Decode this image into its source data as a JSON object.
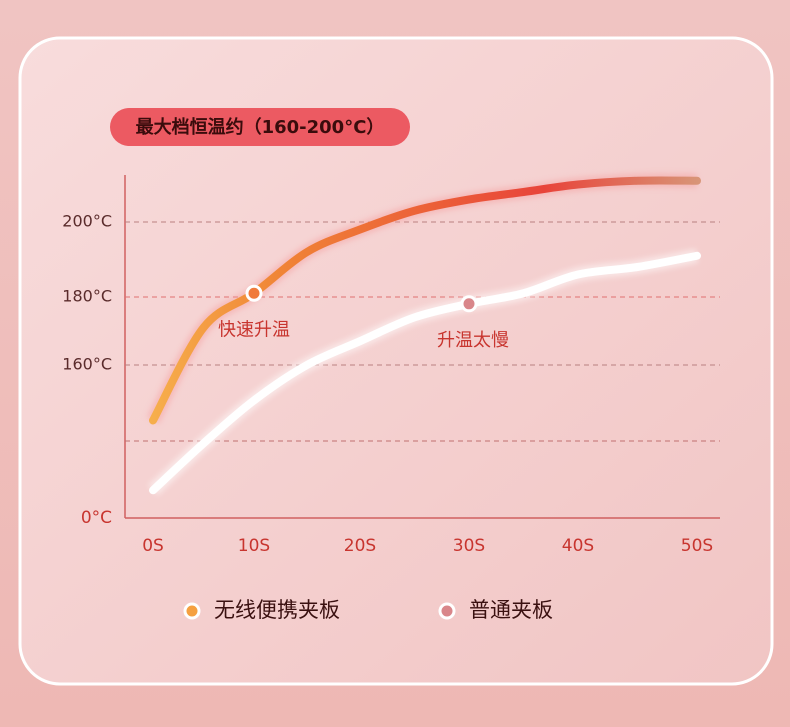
{
  "chart_data": {
    "type": "line",
    "title": "最大档恒温约（160-200°C）",
    "x": [
      0,
      5,
      10,
      15,
      20,
      25,
      30,
      35,
      40,
      45,
      50
    ],
    "xticks": [
      {
        "value": 0,
        "label": "0S"
      },
      {
        "value": 10,
        "label": "10S"
      },
      {
        "value": 20,
        "label": "20S"
      },
      {
        "value": 30,
        "label": "30S"
      },
      {
        "value": 40,
        "label": "40S"
      },
      {
        "value": 50,
        "label": "50S"
      }
    ],
    "yticks": [
      {
        "value": 0,
        "label": "0°C"
      },
      {
        "value": 160,
        "label": "160°C"
      },
      {
        "value": 180,
        "label": "180°C"
      },
      {
        "value": 200,
        "label": "200°C"
      }
    ],
    "grid": true,
    "series": [
      {
        "name": "无线便携夹板",
        "color": "#f08a3a",
        "values": [
          102,
          171,
          181,
          192,
          198,
          203,
          206,
          208,
          210,
          211,
          211
        ],
        "annotation": "快速升温",
        "marker_index": 2
      },
      {
        "name": "普通夹板",
        "color": "#ffffff",
        "values": [
          29,
          78,
          123,
          160,
          167,
          174,
          178,
          181,
          186,
          188,
          191
        ],
        "annotation": "升温太慢",
        "marker_index": 6
      }
    ]
  }
}
